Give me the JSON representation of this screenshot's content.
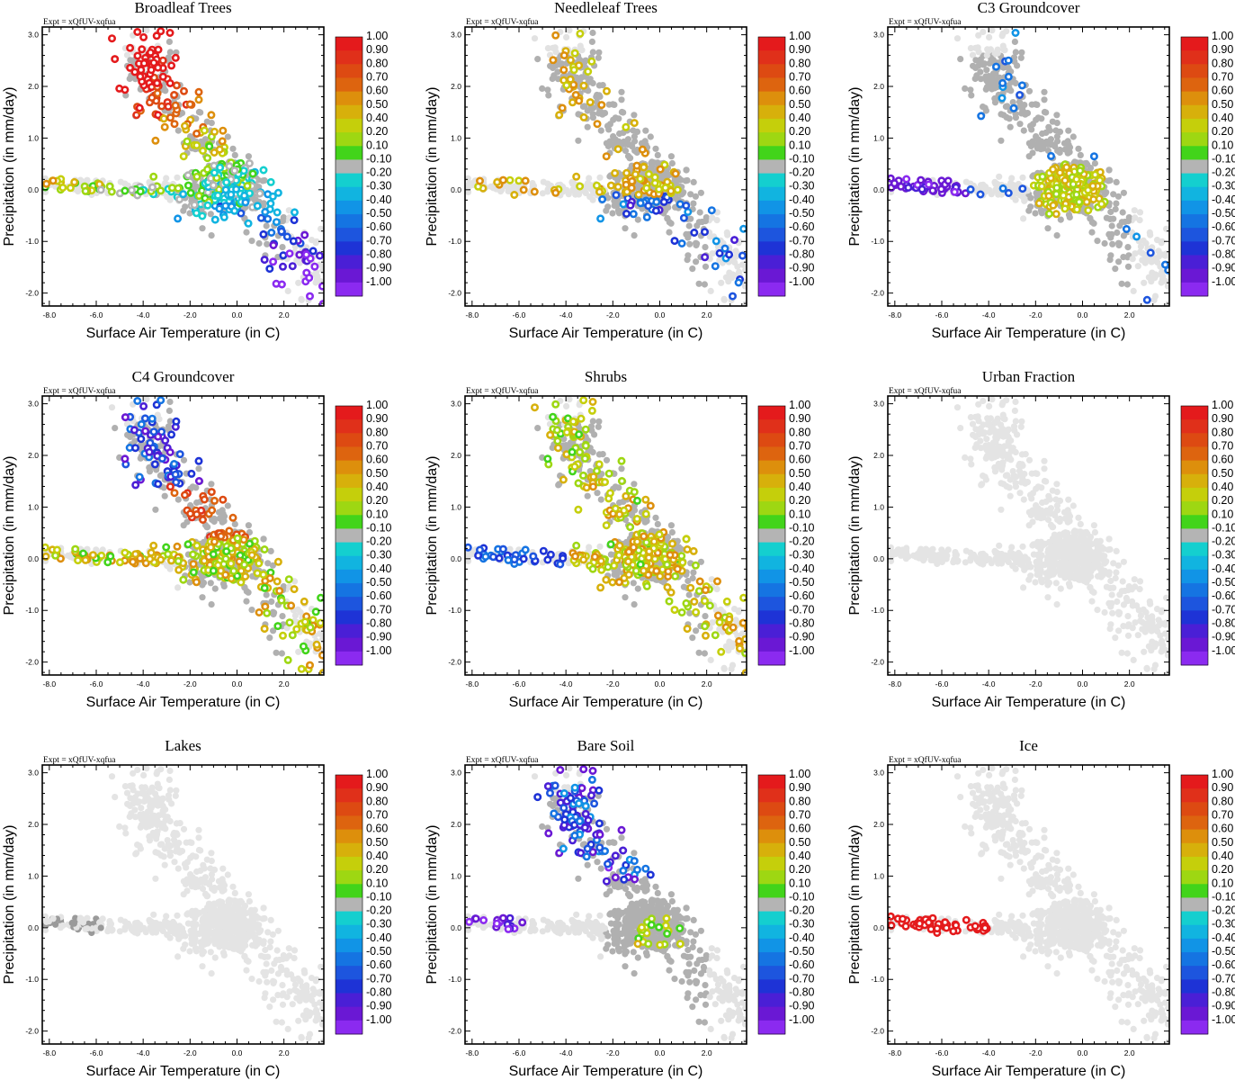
{
  "figure": {
    "experiment_label": "Expt = xQfUV-xqfua",
    "xlabel": "Surface Air Temperature (in C)",
    "ylabel": "Precipitation (in mm/day)",
    "x_ticks": [
      "-8.0",
      "-6.0",
      "-4.0",
      "-2.0",
      "0.0",
      "2.0"
    ],
    "y_ticks": [
      "-2.0",
      "-1.0",
      "0.0",
      "1.0",
      "2.0",
      "3.0"
    ],
    "colorbar": {
      "labels": [
        "1.00",
        "0.90",
        "0.80",
        "0.70",
        "0.60",
        "0.50",
        "0.40",
        "0.20",
        "0.10",
        "-0.10",
        "-0.20",
        "-0.30",
        "-0.40",
        "-0.50",
        "-0.60",
        "-0.70",
        "-0.80",
        "-0.90",
        "-1.00"
      ],
      "colors": [
        "#e41a1c",
        "#e0301a",
        "#dd4a12",
        "#dd640f",
        "#dd8f0c",
        "#d7b00b",
        "#c5cf0b",
        "#9ed712",
        "#42d41a",
        "#b4b4b4",
        "#14cfcf",
        "#11b4e0",
        "#1194e6",
        "#1574e2",
        "#1d55de",
        "#1e33d6",
        "#4a1fd6",
        "#6a18d4",
        "#8b2af0"
      ]
    }
  },
  "chart_data": [
    {
      "type": "scatter",
      "title": "Broadleaf Trees",
      "xlabel": "Surface Air Temperature (in C)",
      "ylabel": "Precipitation (in mm/day)",
      "xlim": [
        -8.3,
        3.7
      ],
      "ylim": [
        -2.25,
        3.15
      ],
      "colorbar_range": [
        -1.0,
        1.0
      ],
      "highlight": "broadleaf"
    },
    {
      "type": "scatter",
      "title": "Needleleaf Trees",
      "xlabel": "Surface Air Temperature (in C)",
      "ylabel": "Precipitation (in mm/day)",
      "xlim": [
        -8.3,
        3.7
      ],
      "ylim": [
        -2.25,
        3.15
      ],
      "colorbar_range": [
        -1.0,
        1.0
      ],
      "highlight": "needleleaf"
    },
    {
      "type": "scatter",
      "title": "C3 Groundcover",
      "xlabel": "Surface Air Temperature (in C)",
      "ylabel": "Precipitation (in mm/day)",
      "xlim": [
        -8.3,
        3.7
      ],
      "ylim": [
        -2.25,
        3.15
      ],
      "colorbar_range": [
        -1.0,
        1.0
      ],
      "highlight": "c3"
    },
    {
      "type": "scatter",
      "title": "C4 Groundcover",
      "xlabel": "Surface Air Temperature (in C)",
      "ylabel": "Precipitation (in mm/day)",
      "xlim": [
        -8.3,
        3.7
      ],
      "ylim": [
        -2.25,
        3.15
      ],
      "colorbar_range": [
        -1.0,
        1.0
      ],
      "highlight": "c4"
    },
    {
      "type": "scatter",
      "title": "Shrubs",
      "xlabel": "Surface Air Temperature (in C)",
      "ylabel": "Precipitation (in mm/day)",
      "xlim": [
        -8.3,
        3.7
      ],
      "ylim": [
        -2.25,
        3.15
      ],
      "colorbar_range": [
        -1.0,
        1.0
      ],
      "highlight": "shrubs"
    },
    {
      "type": "scatter",
      "title": "Urban Fraction",
      "xlabel": "Surface Air Temperature (in C)",
      "ylabel": "Precipitation (in mm/day)",
      "xlim": [
        -8.3,
        3.7
      ],
      "ylim": [
        -2.25,
        3.15
      ],
      "colorbar_range": [
        -1.0,
        1.0
      ],
      "highlight": "none"
    },
    {
      "type": "scatter",
      "title": "Lakes",
      "xlabel": "Surface Air Temperature (in C)",
      "ylabel": "Precipitation (in mm/day)",
      "xlim": [
        -8.3,
        3.7
      ],
      "ylim": [
        -2.25,
        3.15
      ],
      "colorbar_range": [
        -1.0,
        1.0
      ],
      "highlight": "lakes"
    },
    {
      "type": "scatter",
      "title": "Bare Soil",
      "xlabel": "Surface Air Temperature (in C)",
      "ylabel": "Precipitation (in mm/day)",
      "xlim": [
        -8.3,
        3.7
      ],
      "ylim": [
        -2.25,
        3.15
      ],
      "colorbar_range": [
        -1.0,
        1.0
      ],
      "highlight": "baresoil"
    },
    {
      "type": "scatter",
      "title": "Ice",
      "xlabel": "Surface Air Temperature (in C)",
      "ylabel": "Precipitation (in mm/day)",
      "xlim": [
        -8.3,
        3.7
      ],
      "ylim": [
        -2.25,
        3.15
      ],
      "colorbar_range": [
        -1.0,
        1.0
      ],
      "highlight": "ice"
    }
  ]
}
